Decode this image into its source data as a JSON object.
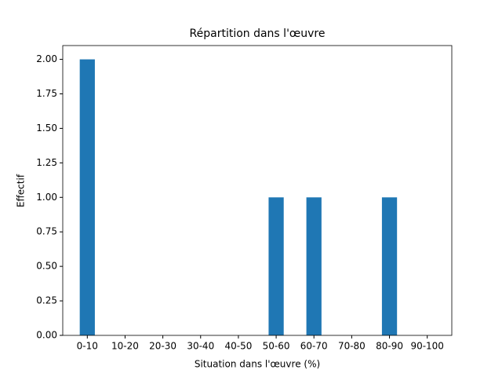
{
  "chart_data": {
    "type": "bar",
    "title": "Répartition dans l'œuvre",
    "x_label": "Situation dans l'œuvre (%)",
    "y_label": "Effectif",
    "categories": [
      "0-10",
      "10-20",
      "20-30",
      "30-40",
      "40-50",
      "50-60",
      "60-70",
      "70-80",
      "80-90",
      "90-100"
    ],
    "values": [
      2,
      0,
      0,
      0,
      0,
      1,
      1,
      0,
      1,
      0
    ],
    "color": "#1f77b4",
    "ylim": [
      0,
      2.1
    ],
    "yticks": [
      {
        "value": 0,
        "label": "0.00"
      },
      {
        "value": 0.25,
        "label": "0.25"
      },
      {
        "value": 0.5,
        "label": "0.50"
      },
      {
        "value": 0.75,
        "label": "0.75"
      },
      {
        "value": 1,
        "label": "1.00"
      },
      {
        "value": 1.25,
        "label": "1.25"
      },
      {
        "value": 1.5,
        "label": "1.50"
      },
      {
        "value": 1.75,
        "label": "1.75"
      },
      {
        "value": 2,
        "label": "2.00"
      }
    ],
    "grid": false
  }
}
